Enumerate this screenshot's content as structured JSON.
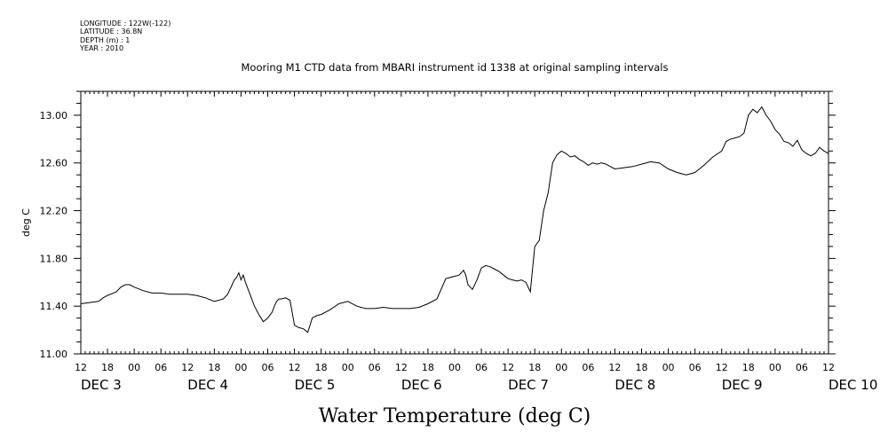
{
  "header": {
    "lines": [
      "LONGITUDE : 122W(-122)",
      "LATITUDE : 36.8N",
      "DEPTH (m) : 1",
      "YEAR : 2010"
    ]
  },
  "chart_data": {
    "type": "line",
    "title": "Mooring M1 CTD data from MBARI instrument id 1338 at original sampling intervals",
    "xlabel": "Water Temperature (deg C)",
    "ylabel": "deg C",
    "ylim": [
      11.0,
      13.2
    ],
    "yticks": [
      "11.00",
      "11.40",
      "11.80",
      "12.20",
      "12.60",
      "13.00"
    ],
    "xlim_hours": [
      0,
      168
    ],
    "x_hour_ticks": [
      "12",
      "18",
      "00",
      "06",
      "12",
      "18",
      "00",
      "06",
      "12",
      "18",
      "00",
      "06",
      "12",
      "18",
      "00",
      "06",
      "12",
      "18",
      "00",
      "06",
      "12",
      "18",
      "00",
      "06",
      "12",
      "18",
      "00",
      "06",
      "12"
    ],
    "date_labels": [
      "DEC 3",
      "DEC 4",
      "DEC 5",
      "DEC 6",
      "DEC 7",
      "DEC 8",
      "DEC 9",
      "DEC 10"
    ],
    "x_unit": "hours since DEC 3 12:00",
    "grid": false,
    "series": [
      {
        "x": [
          0,
          2,
          4,
          5,
          6,
          8,
          9,
          10,
          11,
          12,
          14,
          16,
          18,
          20,
          22,
          24,
          26,
          28,
          30,
          32,
          33,
          34,
          34.5,
          35,
          35.5,
          36,
          36.5,
          37,
          38,
          39,
          40,
          41,
          42,
          43,
          43.5,
          44,
          44.5,
          45,
          46,
          47,
          48,
          49,
          50,
          51,
          52,
          53,
          54,
          56,
          58,
          60,
          62,
          64,
          66,
          68,
          70,
          72,
          74,
          76,
          78,
          80,
          82,
          84,
          85,
          86,
          86.5,
          87,
          88,
          89,
          90,
          91,
          92,
          93,
          94,
          95,
          96,
          97,
          98,
          99,
          100,
          101,
          102,
          103,
          104,
          105,
          106,
          107,
          108,
          109,
          110,
          111,
          112,
          113,
          114,
          115,
          116,
          117,
          118,
          119,
          120,
          122,
          124,
          126,
          128,
          130,
          132,
          134,
          136,
          138,
          140,
          142,
          144,
          145,
          146,
          147,
          148,
          149,
          150,
          151,
          152,
          153,
          154,
          155,
          156,
          157,
          158,
          159,
          160,
          161,
          162,
          163,
          164,
          165,
          166,
          167,
          168
        ],
        "y": [
          11.42,
          11.43,
          11.44,
          11.47,
          11.49,
          11.52,
          11.56,
          11.58,
          11.58,
          11.56,
          11.53,
          11.51,
          11.51,
          11.5,
          11.5,
          11.5,
          11.49,
          11.47,
          11.44,
          11.46,
          11.5,
          11.58,
          11.62,
          11.64,
          11.68,
          11.62,
          11.66,
          11.6,
          11.5,
          11.4,
          11.33,
          11.27,
          11.3,
          11.35,
          11.4,
          11.44,
          11.46,
          11.46,
          11.47,
          11.45,
          11.24,
          11.22,
          11.21,
          11.18,
          11.3,
          11.32,
          11.33,
          11.37,
          11.42,
          11.44,
          11.4,
          11.38,
          11.38,
          11.39,
          11.38,
          11.38,
          11.38,
          11.39,
          11.42,
          11.46,
          11.63,
          11.65,
          11.66,
          11.7,
          11.66,
          11.58,
          11.54,
          11.62,
          11.72,
          11.74,
          11.73,
          11.71,
          11.69,
          11.66,
          11.63,
          11.62,
          11.61,
          11.62,
          11.6,
          11.52,
          11.9,
          11.95,
          12.2,
          12.35,
          12.6,
          12.67,
          12.7,
          12.68,
          12.65,
          12.66,
          12.63,
          12.61,
          12.58,
          12.6,
          12.59,
          12.6,
          12.59,
          12.57,
          12.55,
          12.56,
          12.57,
          12.59,
          12.61,
          12.6,
          12.55,
          12.52,
          12.5,
          12.52,
          12.58,
          12.65,
          12.7,
          12.78,
          12.8,
          12.81,
          12.82,
          12.85,
          13.0,
          13.05,
          13.02,
          13.07,
          13.0,
          12.95,
          12.88,
          12.84,
          12.78,
          12.77,
          12.74,
          12.79,
          12.71,
          12.68,
          12.66,
          12.68,
          12.73,
          12.7,
          12.68
        ]
      }
    ]
  }
}
